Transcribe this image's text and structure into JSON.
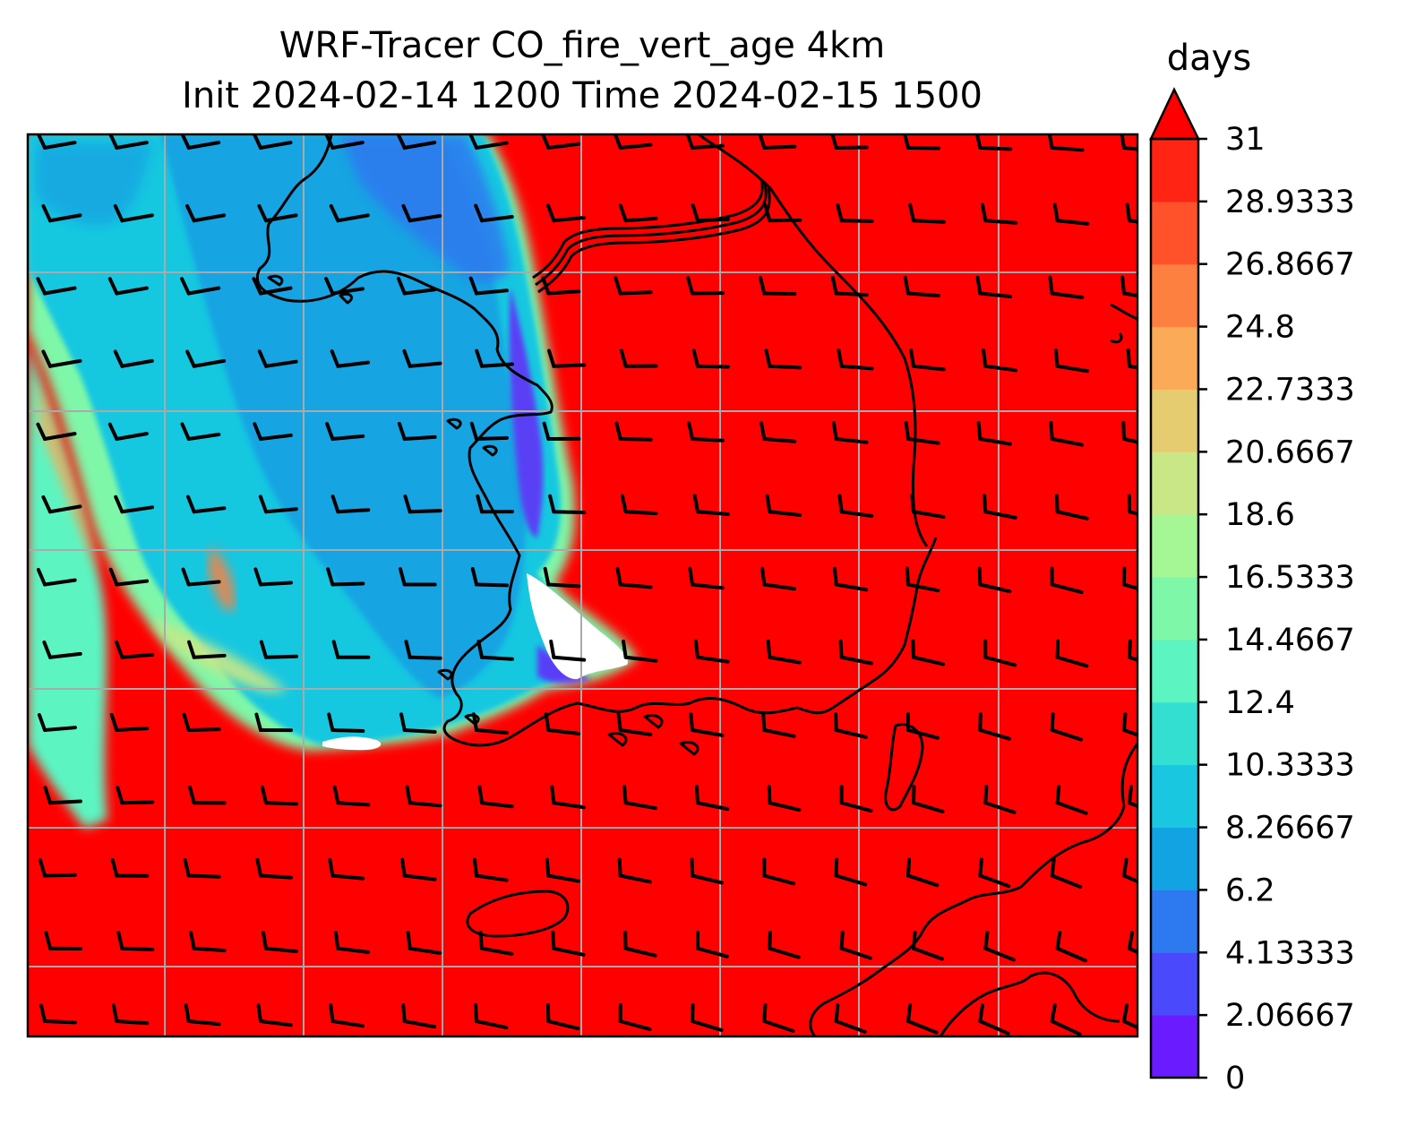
{
  "figure": {
    "title_line1": "WRF-Tracer CO_fire_vert_age 4km",
    "title_line2": "Init 2024-02-14 1200 Time 2024-02-15 1500"
  },
  "colorbar": {
    "label": "days",
    "extend": "max",
    "ticks": [
      "0",
      "2.06667",
      "4.13333",
      "6.2",
      "8.26667",
      "10.3333",
      "12.4",
      "14.4667",
      "16.5333",
      "18.6",
      "20.6667",
      "22.7333",
      "24.8",
      "26.8667",
      "28.9333",
      "31"
    ],
    "colors": [
      "#6a1bff",
      "#4a49fb",
      "#2d79f0",
      "#12a4e2",
      "#19c7e0",
      "#33dfd0",
      "#5cf5c2",
      "#7ff7a8",
      "#a4f794",
      "#c9e787",
      "#e6cc70",
      "#fbaa57",
      "#fd8040",
      "#ff522a",
      "#ff2414"
    ],
    "over_color": "#ff0000"
  },
  "map": {
    "colors": {
      "background_red": "#ff0000",
      "teal": "#19c7e0",
      "blue": "#12a4e2",
      "light_teal": "#5cf5c2",
      "purple": "#5a40f5",
      "white": "#ffffff",
      "grid": "#aaaaaa",
      "coast": "#000000"
    },
    "icons": [
      "wind-barb-icon",
      "coastline",
      "gridline"
    ]
  }
}
